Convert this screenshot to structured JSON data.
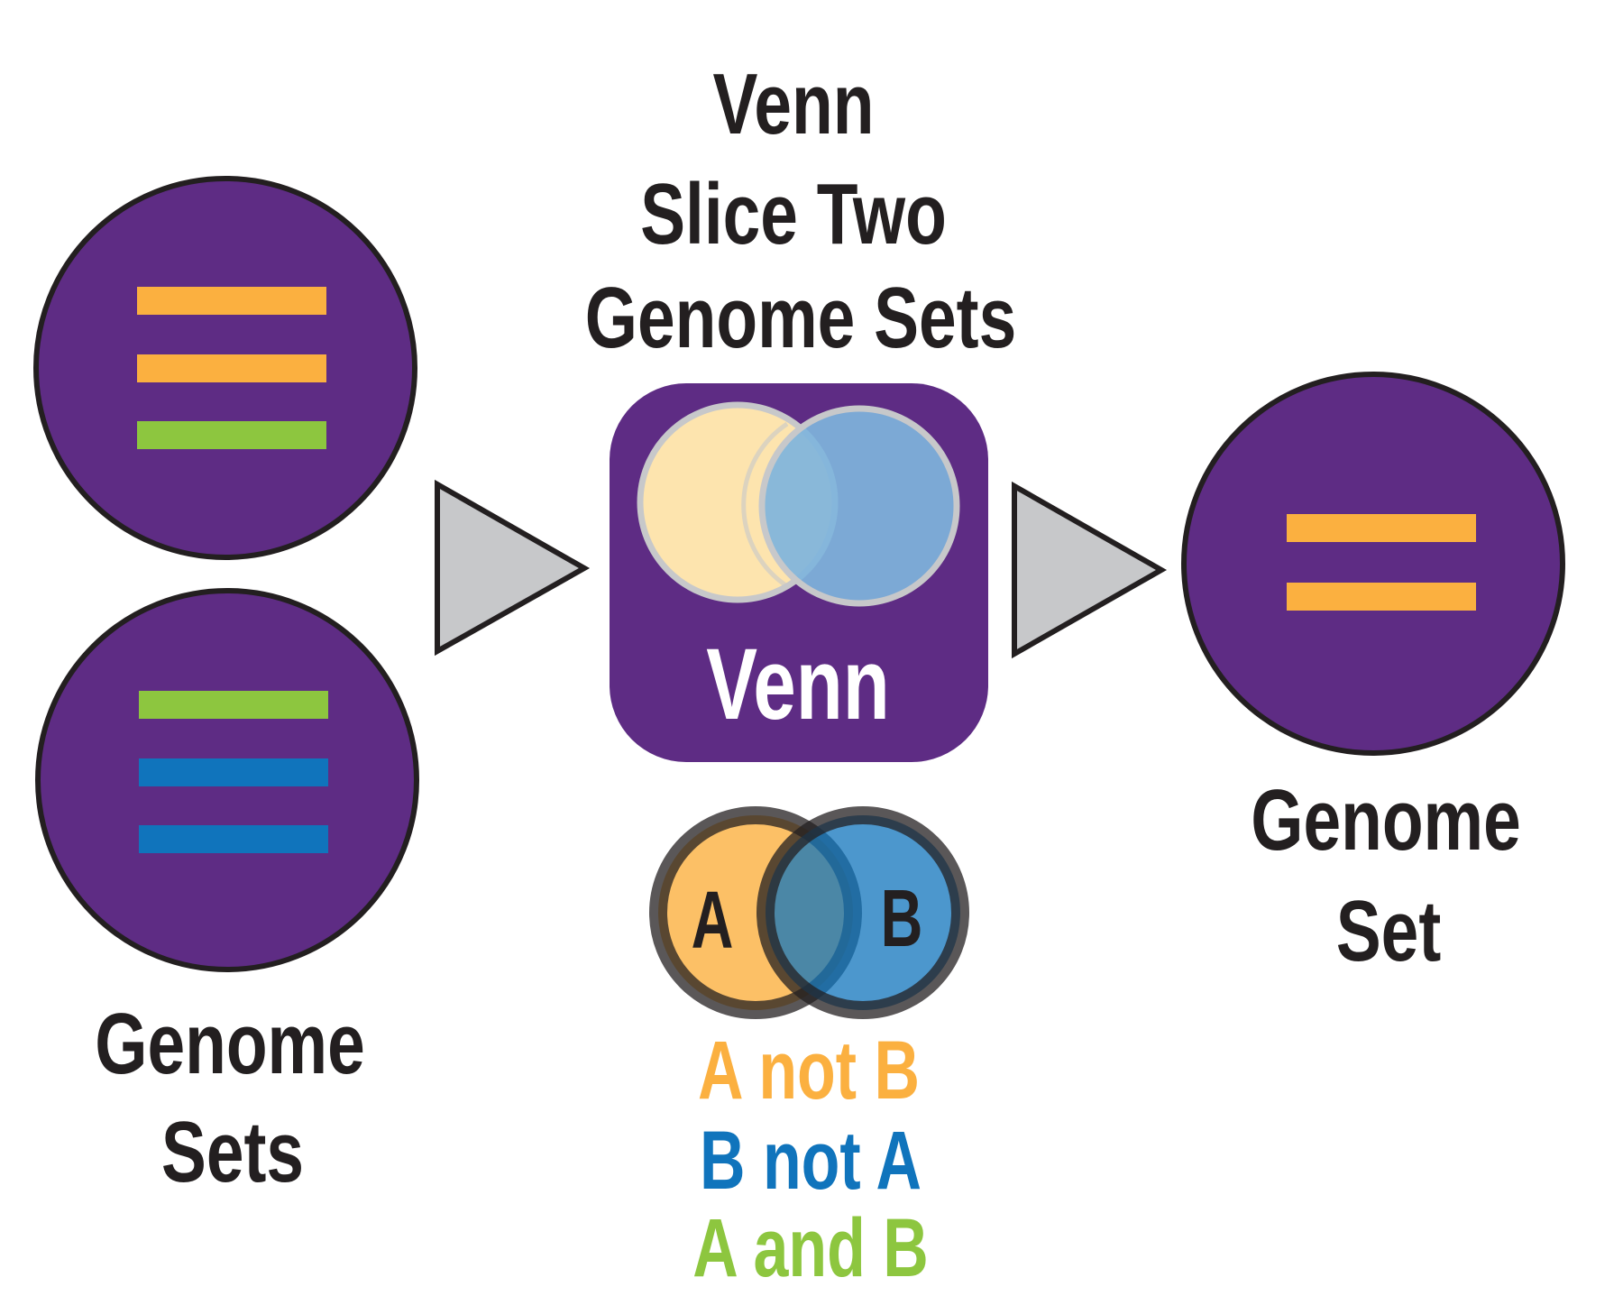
{
  "title_lines": [
    "Venn",
    "Slice Two",
    "Genome Sets"
  ],
  "inputs": {
    "label_lines": [
      "Genome",
      "Sets"
    ],
    "set_a_bar_colors": [
      "#FBB040",
      "#FBB040",
      "#8DC63F"
    ],
    "set_b_bar_colors": [
      "#8DC63F",
      "#1074BC",
      "#1074BC"
    ]
  },
  "tool": {
    "label": "Venn",
    "icon": "venn-diagram-icon"
  },
  "venn_legend": {
    "circle_a_label": "A",
    "circle_b_label": "B",
    "options": [
      {
        "text": "A not B",
        "color": "#FBB040"
      },
      {
        "text": "B not A",
        "color": "#1074BC"
      },
      {
        "text": "A and B",
        "color": "#8DC63F"
      }
    ]
  },
  "output": {
    "label_lines": [
      "Genome",
      "Set"
    ],
    "bar_colors": [
      "#FBB040",
      "#FBB040"
    ]
  },
  "colors": {
    "purple": "#5E2C84",
    "outline": "#231F20",
    "arrow_fill": "#C7C8CA",
    "orange": "#FBB040",
    "blue": "#1074BC",
    "green": "#8DC63F"
  }
}
